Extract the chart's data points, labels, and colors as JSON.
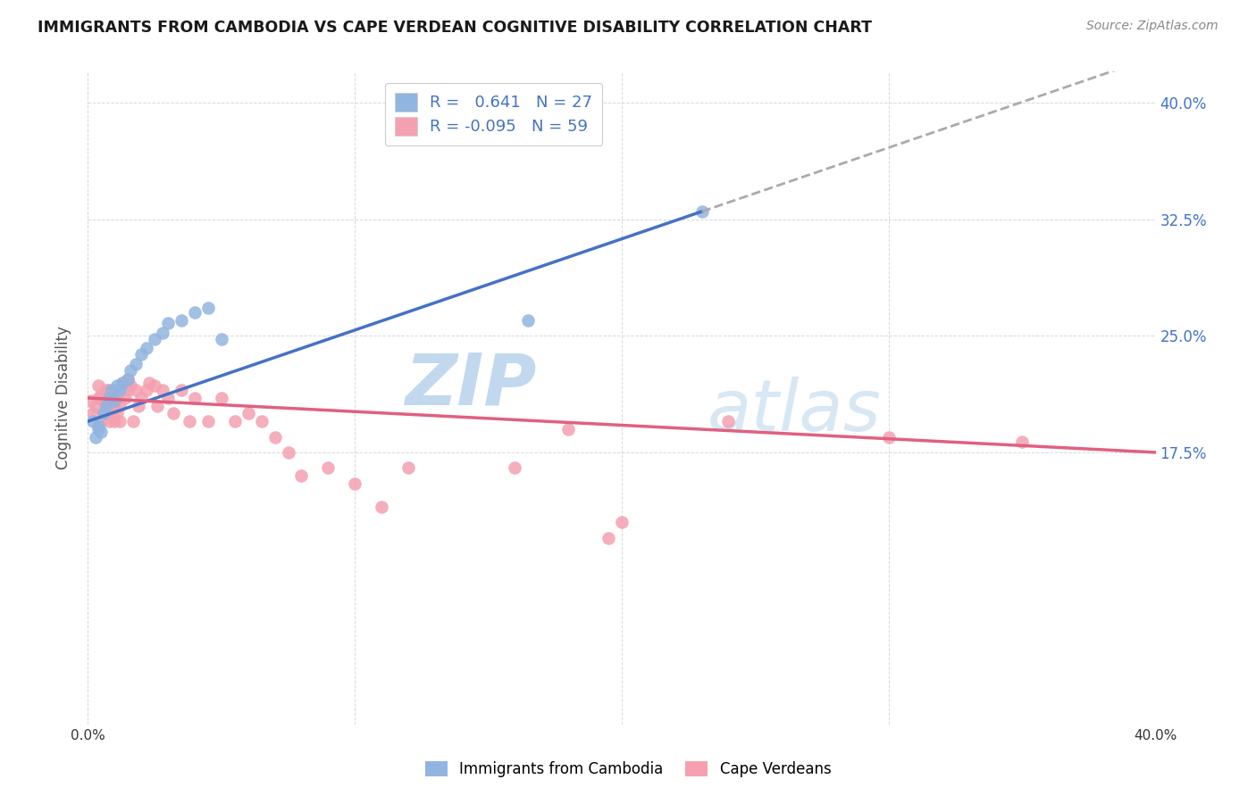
{
  "title": "IMMIGRANTS FROM CAMBODIA VS CAPE VERDEAN COGNITIVE DISABILITY CORRELATION CHART",
  "source": "Source: ZipAtlas.com",
  "ylabel": "Cognitive Disability",
  "xlim": [
    0.0,
    0.4
  ],
  "ylim": [
    0.0,
    0.42
  ],
  "yticks": [
    0.175,
    0.25,
    0.325,
    0.4
  ],
  "ytick_labels": [
    "17.5%",
    "25.0%",
    "32.5%",
    "40.0%"
  ],
  "xticks": [
    0.0,
    0.1,
    0.2,
    0.3,
    0.4
  ],
  "xtick_labels": [
    "0.0%",
    "",
    "",
    "",
    "40.0%"
  ],
  "background_color": "#ffffff",
  "grid_color": "#d8d8d8",
  "series1_label": "Immigrants from Cambodia",
  "series1_color": "#92b4e0",
  "series1_R": "0.641",
  "series1_N": "27",
  "series2_label": "Cape Verdeans",
  "series2_color": "#f4a0b0",
  "series2_R": "-0.095",
  "series2_N": "59",
  "series1_x": [
    0.002,
    0.003,
    0.004,
    0.004,
    0.005,
    0.006,
    0.007,
    0.008,
    0.009,
    0.01,
    0.011,
    0.012,
    0.013,
    0.015,
    0.016,
    0.018,
    0.02,
    0.022,
    0.025,
    0.028,
    0.03,
    0.035,
    0.04,
    0.045,
    0.05,
    0.165,
    0.23
  ],
  "series1_y": [
    0.195,
    0.185,
    0.19,
    0.192,
    0.188,
    0.2,
    0.205,
    0.21,
    0.215,
    0.208,
    0.218,
    0.215,
    0.22,
    0.222,
    0.228,
    0.232,
    0.238,
    0.242,
    0.248,
    0.252,
    0.258,
    0.26,
    0.265,
    0.268,
    0.248,
    0.26,
    0.33
  ],
  "series2_x": [
    0.001,
    0.002,
    0.003,
    0.004,
    0.004,
    0.005,
    0.005,
    0.006,
    0.006,
    0.007,
    0.007,
    0.008,
    0.008,
    0.009,
    0.009,
    0.01,
    0.01,
    0.011,
    0.011,
    0.012,
    0.012,
    0.013,
    0.014,
    0.015,
    0.015,
    0.016,
    0.017,
    0.018,
    0.019,
    0.02,
    0.022,
    0.023,
    0.025,
    0.026,
    0.028,
    0.03,
    0.032,
    0.035,
    0.038,
    0.04,
    0.045,
    0.05,
    0.055,
    0.06,
    0.065,
    0.07,
    0.075,
    0.08,
    0.09,
    0.1,
    0.11,
    0.12,
    0.16,
    0.18,
    0.195,
    0.2,
    0.24,
    0.3,
    0.35
  ],
  "series2_y": [
    0.208,
    0.2,
    0.205,
    0.21,
    0.218,
    0.195,
    0.212,
    0.2,
    0.208,
    0.215,
    0.205,
    0.215,
    0.195,
    0.2,
    0.21,
    0.195,
    0.205,
    0.2,
    0.212,
    0.205,
    0.195,
    0.22,
    0.21,
    0.222,
    0.215,
    0.218,
    0.195,
    0.215,
    0.205,
    0.21,
    0.215,
    0.22,
    0.218,
    0.205,
    0.215,
    0.21,
    0.2,
    0.215,
    0.195,
    0.21,
    0.195,
    0.21,
    0.195,
    0.2,
    0.195,
    0.185,
    0.175,
    0.16,
    0.165,
    0.155,
    0.14,
    0.165,
    0.165,
    0.19,
    0.12,
    0.13,
    0.195,
    0.185,
    0.182
  ],
  "watermark_line1": "ZIP",
  "watermark_line2": "atlas",
  "watermark_color": "#c8ddf0",
  "trendline1_color": "#4472c4",
  "trendline2_color": "#e06080",
  "extrapolate_color": "#aaaaaa",
  "trend1_x0": 0.0,
  "trend1_y0": 0.195,
  "trend1_x1": 0.23,
  "trend1_y1": 0.33,
  "trend2_x0": 0.0,
  "trend2_y0": 0.21,
  "trend2_x1": 0.4,
  "trend2_y1": 0.175
}
